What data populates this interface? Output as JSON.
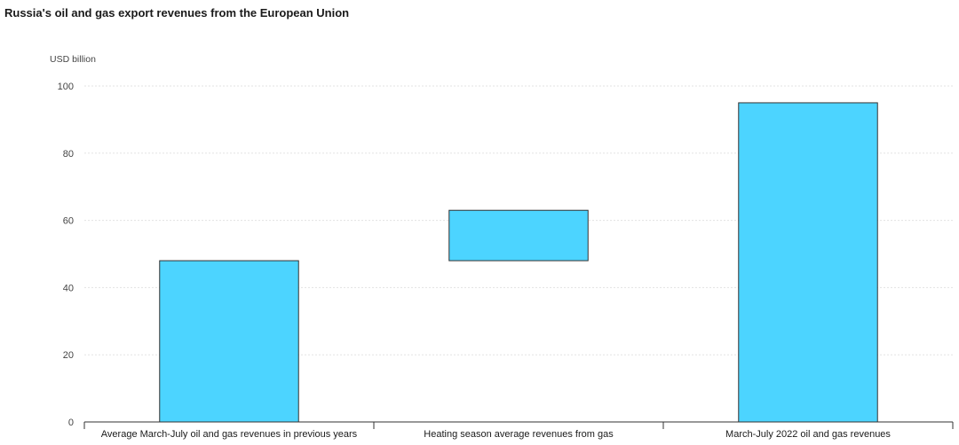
{
  "chart_data": {
    "type": "bar",
    "subtype": "waterfall",
    "title": "Russia's oil and gas export revenues from the European Union",
    "ylabel": "USD billion",
    "xlabel": "",
    "ylim": [
      0,
      100
    ],
    "yticks": [
      0,
      20,
      40,
      60,
      80,
      100
    ],
    "grid": true,
    "legend": "none",
    "bar_color": "#4cd4ff",
    "bar_edge_color": "#333333",
    "categories": [
      "Average March-July oil and gas revenues in previous years",
      "Heating season average revenues from gas",
      "March-July 2022 oil and gas revenues"
    ],
    "bars": [
      {
        "category": "Average March-July oil and gas revenues in previous years",
        "base": 0,
        "top": 48
      },
      {
        "category": "Heating season average revenues from gas",
        "base": 48,
        "top": 63
      },
      {
        "category": "March-July 2022 oil and gas revenues",
        "base": 0,
        "top": 95
      }
    ]
  }
}
